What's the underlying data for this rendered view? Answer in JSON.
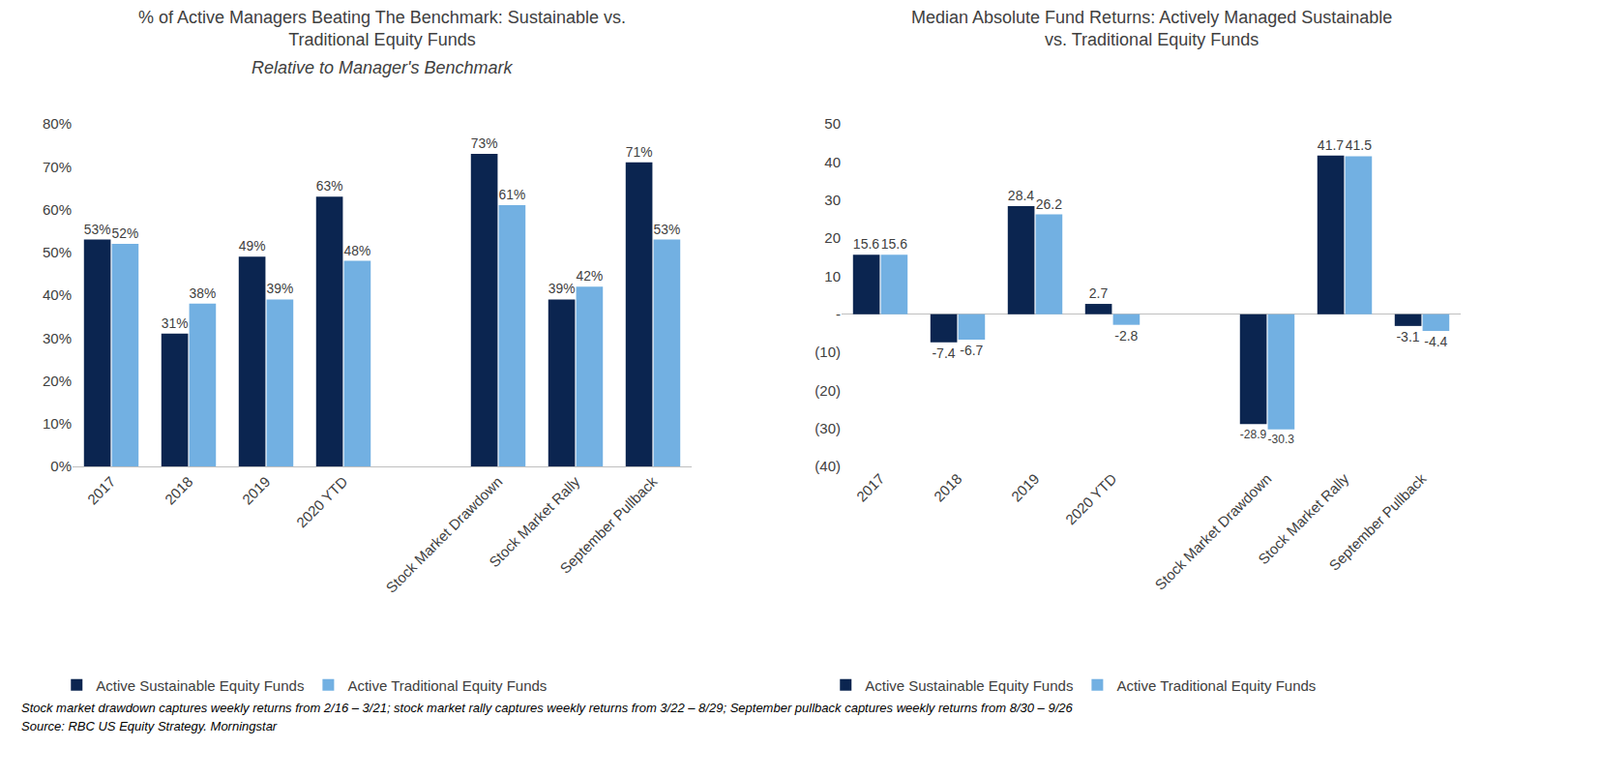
{
  "chart_data": [
    {
      "type": "bar",
      "title": "% of Active Managers Beating The Benchmark: Sustainable vs.\nTraditional Equity Funds",
      "subtitle": "Relative to Manager's Benchmark",
      "categories": [
        "2017",
        "2018",
        "2019",
        "2020 YTD",
        null,
        "Stock Market Drawdown",
        "Stock Market Rally",
        "September Pullback"
      ],
      "series": [
        {
          "name": "Active Sustainable Equity Funds",
          "color": "#0b2550",
          "values": [
            53,
            31,
            49,
            63,
            null,
            73,
            39,
            71
          ],
          "value_labels": [
            "53%",
            "31%",
            "49%",
            "63%",
            null,
            "73%",
            "39%",
            "71%"
          ]
        },
        {
          "name": "Active Traditional Equity Funds",
          "color": "#72b0e2",
          "values": [
            52,
            38,
            39,
            48,
            null,
            61,
            42,
            53
          ],
          "value_labels": [
            "52%",
            "38%",
            "39%",
            "48%",
            null,
            "61%",
            "42%",
            "53%"
          ]
        }
      ],
      "ylim": [
        0,
        80
      ],
      "yticks": [
        {
          "value": 0,
          "label": "0%"
        },
        {
          "value": 10,
          "label": "10%"
        },
        {
          "value": 20,
          "label": "20%"
        },
        {
          "value": 30,
          "label": "30%"
        },
        {
          "value": 40,
          "label": "40%"
        },
        {
          "value": 50,
          "label": "50%"
        },
        {
          "value": 60,
          "label": "60%"
        },
        {
          "value": 70,
          "label": "70%"
        },
        {
          "value": 80,
          "label": "80%"
        }
      ],
      "grid": false,
      "data_labels": true,
      "legend": "bottom"
    },
    {
      "type": "bar",
      "title": "Median Absolute Fund Returns: Actively Managed Sustainable\nvs. Traditional Equity Funds",
      "categories": [
        "2017",
        "2018",
        "2019",
        "2020 YTD",
        null,
        "Stock Market Drawdown",
        "Stock Market Rally",
        "September Pullback"
      ],
      "series": [
        {
          "name": "Active Sustainable Equity Funds",
          "color": "#0b2550",
          "values": [
            15.6,
            -7.4,
            28.4,
            2.7,
            null,
            -28.9,
            41.7,
            -3.1
          ]
        },
        {
          "name": "Active Traditional Equity Funds",
          "color": "#72b0e2",
          "values": [
            15.6,
            -6.7,
            26.2,
            -2.8,
            null,
            -30.3,
            41.5,
            -4.4
          ]
        }
      ],
      "ylim": [
        -40,
        50
      ],
      "yticks": [
        {
          "value": -40,
          "label": "(40)"
        },
        {
          "value": -30,
          "label": "(30)"
        },
        {
          "value": -20,
          "label": "(20)"
        },
        {
          "value": -10,
          "label": "(10)"
        },
        {
          "value": 0,
          "label": "-"
        },
        10,
        20,
        30,
        40,
        50
      ],
      "grid": false,
      "data_labels": true,
      "legend": "bottom"
    }
  ],
  "footnote": "Stock market drawdown captures weekly returns from 2/16 – 3/21; stock market rally captures weekly returns from 3/22 – 8/29; September pullback captures weekly returns from 8/30 – 9/26",
  "source": "Source: RBC US Equity Strategy. Morningstar"
}
